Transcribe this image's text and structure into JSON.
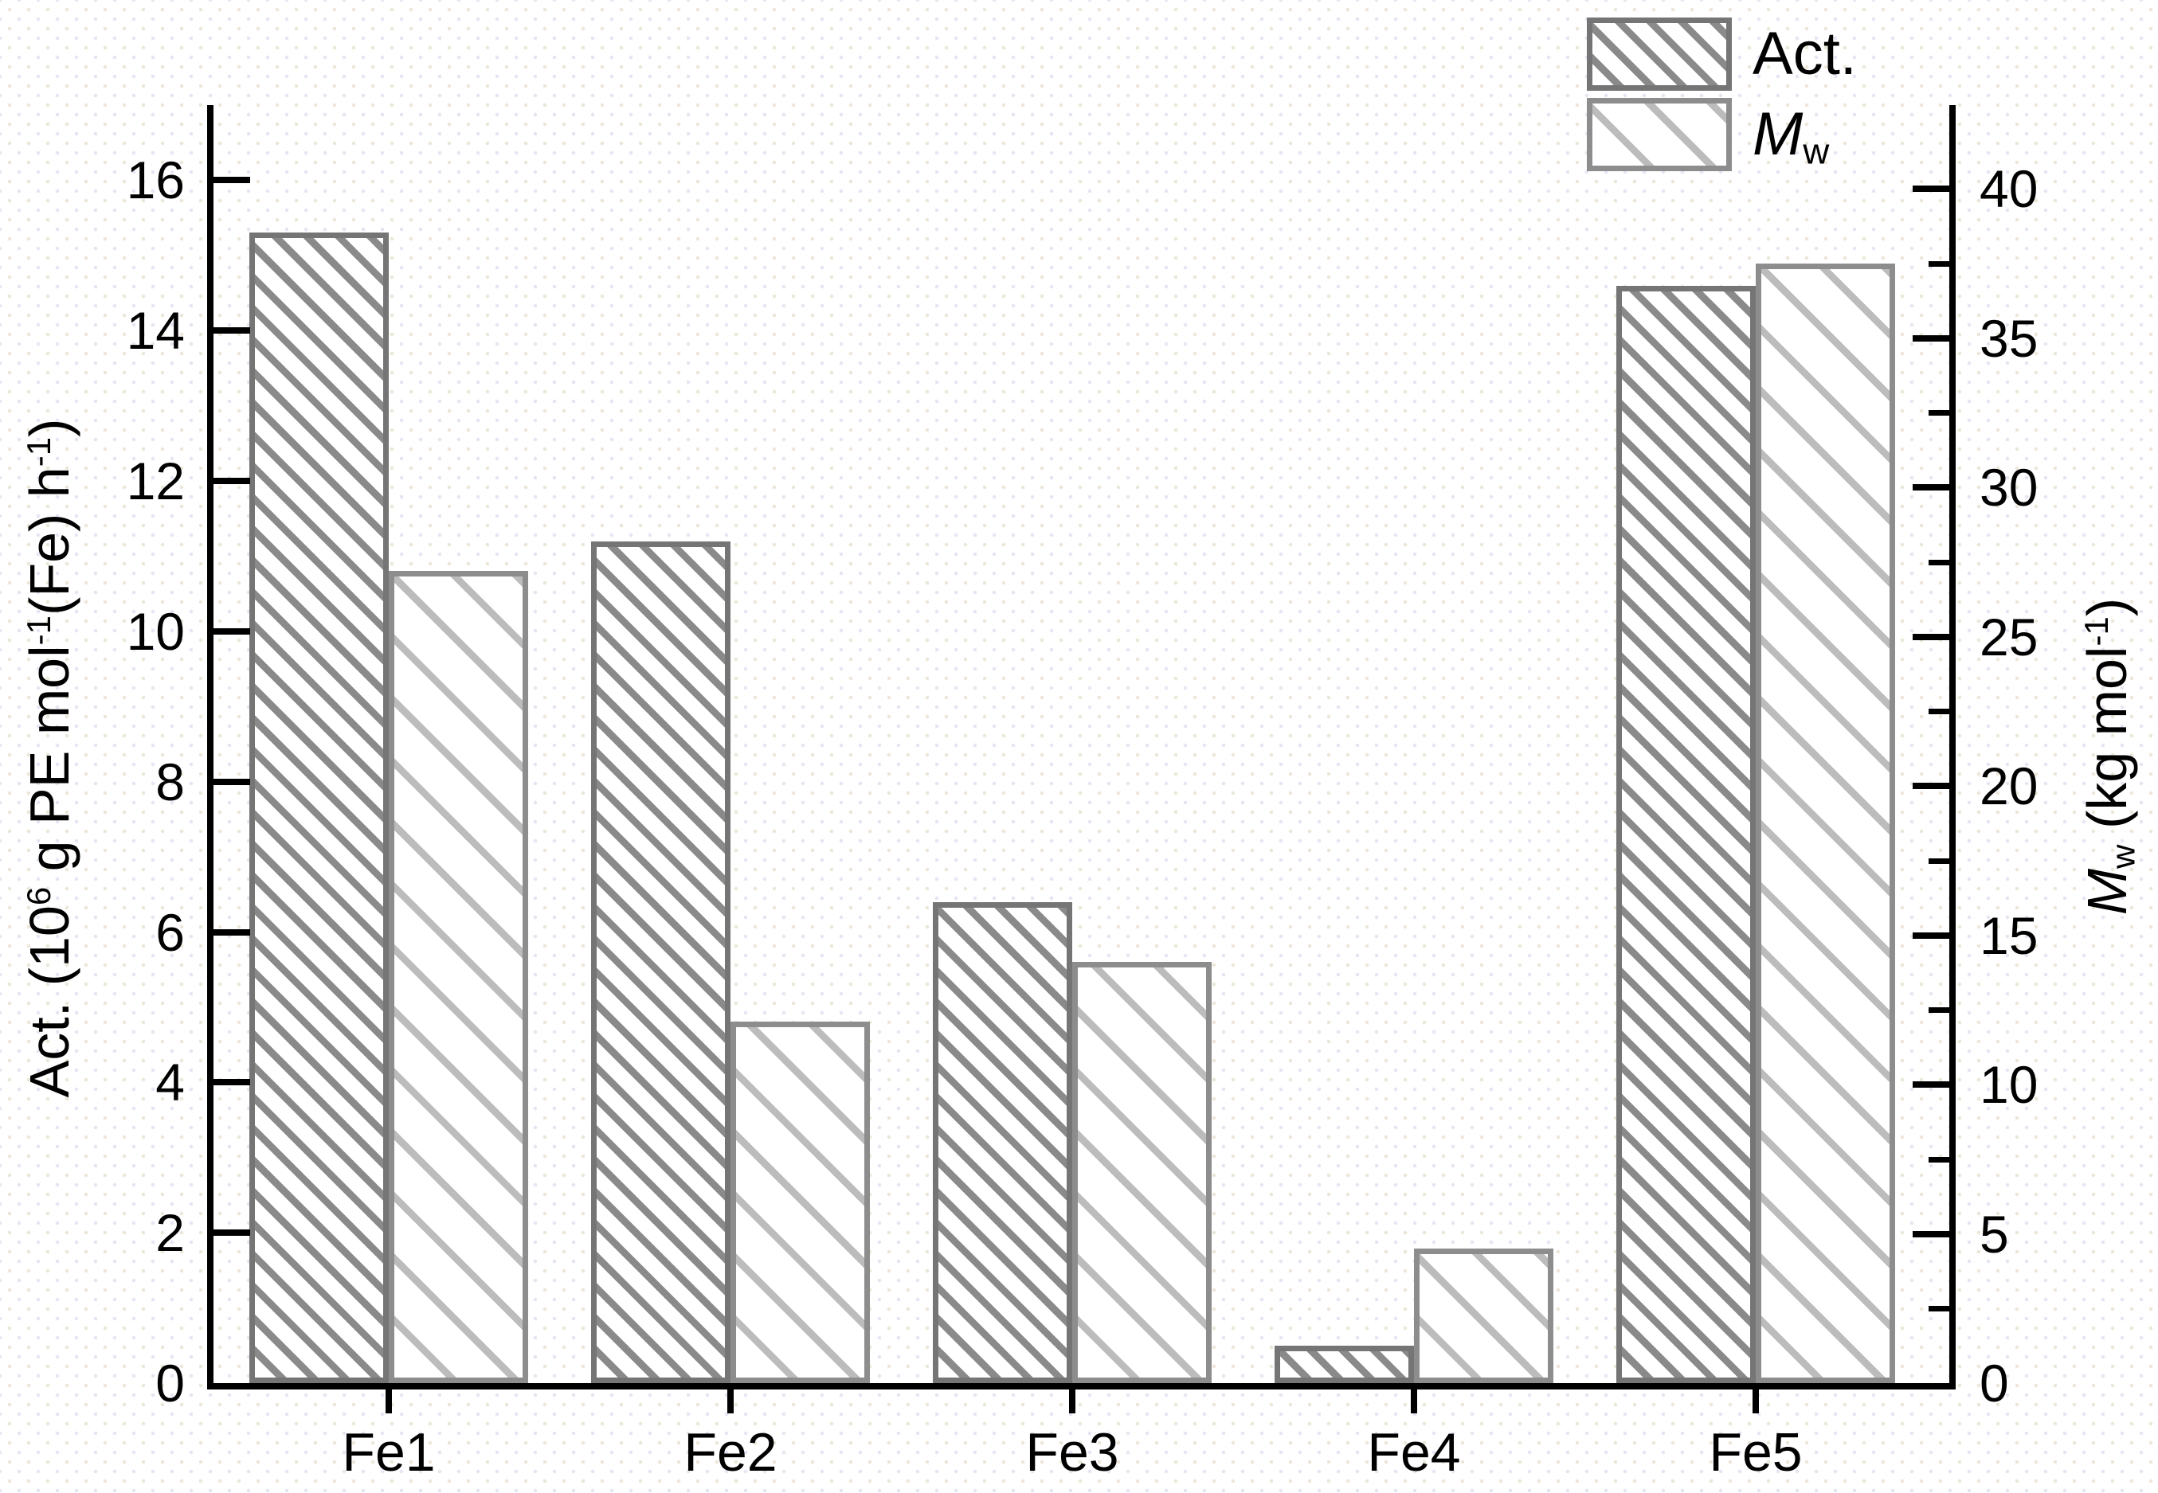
{
  "chart_data": {
    "type": "bar",
    "title": "",
    "categories": [
      "Fe1",
      "Fe2",
      "Fe3",
      "Fe4",
      "Fe5"
    ],
    "series": [
      {
        "name": "Act.",
        "axis": "left",
        "values": [
          15.3,
          11.2,
          6.4,
          0.5,
          14.6
        ]
      },
      {
        "name": "Mw",
        "axis": "right",
        "values": [
          27.2,
          12.1,
          14.1,
          4.5,
          37.5
        ]
      }
    ],
    "left_axis": {
      "label_plain": "Act. (10^6 g PE mol^-1(Fe) h^-1)",
      "label_parts": [
        {
          "t": "Act. (10"
        },
        {
          "t": "6",
          "sup": true
        },
        {
          "t": " g PE mol"
        },
        {
          "t": "-1",
          "sup": true
        },
        {
          "t": "(Fe) h"
        },
        {
          "t": "-1",
          "sup": true
        },
        {
          "t": ")"
        }
      ],
      "ticks": [
        0,
        2,
        4,
        6,
        8,
        10,
        12,
        14,
        16
      ],
      "range": [
        0,
        17
      ]
    },
    "right_axis": {
      "label_plain": "Mw (kg mol^-1)",
      "label_parts": [
        {
          "t": "M",
          "italic": true
        },
        {
          "t": "w",
          "sub": true
        },
        {
          "t": " (kg mol",
          "lead_space": true
        },
        {
          "t": "-1",
          "sup": true
        },
        {
          "t": ")"
        }
      ],
      "ticks": [
        0,
        5,
        10,
        15,
        20,
        25,
        30,
        35,
        40
      ],
      "minor_step": 2.5,
      "range": [
        0,
        42.8
      ]
    },
    "legend": {
      "position": "top-right",
      "entries": [
        {
          "series": "Act.",
          "swatch": "act",
          "parts": [
            {
              "t": "Act."
            }
          ]
        },
        {
          "series": "Mw",
          "swatch": "mw",
          "parts": [
            {
              "t": "M",
              "italic": true
            },
            {
              "t": "w",
              "sub": true
            }
          ]
        }
      ]
    },
    "grid": false
  },
  "colors": {
    "act_hatch": "#8a8a8a",
    "act_border": "#757575",
    "mw_hatch": "#bcbcbc",
    "mw_border": "#8d8d8d",
    "axis": "#000000",
    "text": "#000000",
    "background": "#ffffff"
  }
}
